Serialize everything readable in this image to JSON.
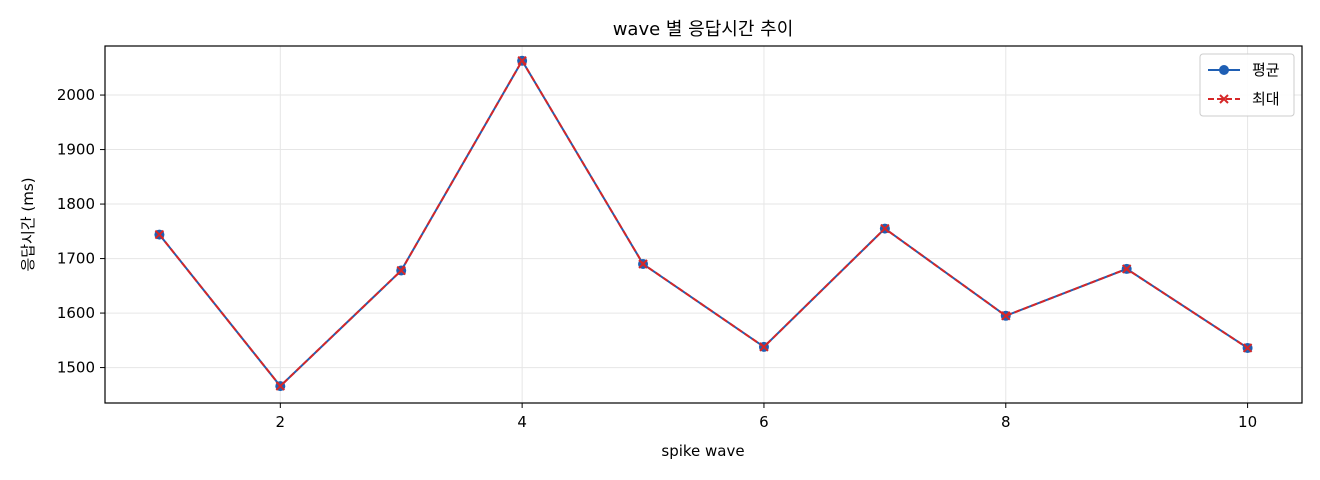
{
  "chart_data": {
    "type": "line",
    "title": "wave 별 응답시간 추이",
    "xlabel": "spike wave",
    "ylabel": "응답시간 (ms)",
    "x": [
      1,
      2,
      3,
      4,
      5,
      6,
      7,
      8,
      9,
      10
    ],
    "xlim": [
      0.55,
      10.45
    ],
    "ylim": [
      1435,
      2090
    ],
    "x_ticks": [
      2,
      4,
      6,
      8,
      10
    ],
    "y_ticks": [
      1500,
      1600,
      1700,
      1800,
      1900,
      2000
    ],
    "grid": true,
    "legend_position": "top-right",
    "series": [
      {
        "name": "평균",
        "values": [
          1744,
          1466,
          1678,
          2063,
          1690,
          1538,
          1755,
          1595,
          1681,
          1536
        ],
        "color": "#1f5fb4",
        "marker": "circle",
        "line_style": "solid"
      },
      {
        "name": "최대",
        "values": [
          1744,
          1466,
          1678,
          2063,
          1690,
          1538,
          1755,
          1595,
          1681,
          1536
        ],
        "color": "#d62728",
        "marker": "x",
        "line_style": "dashed"
      }
    ]
  }
}
